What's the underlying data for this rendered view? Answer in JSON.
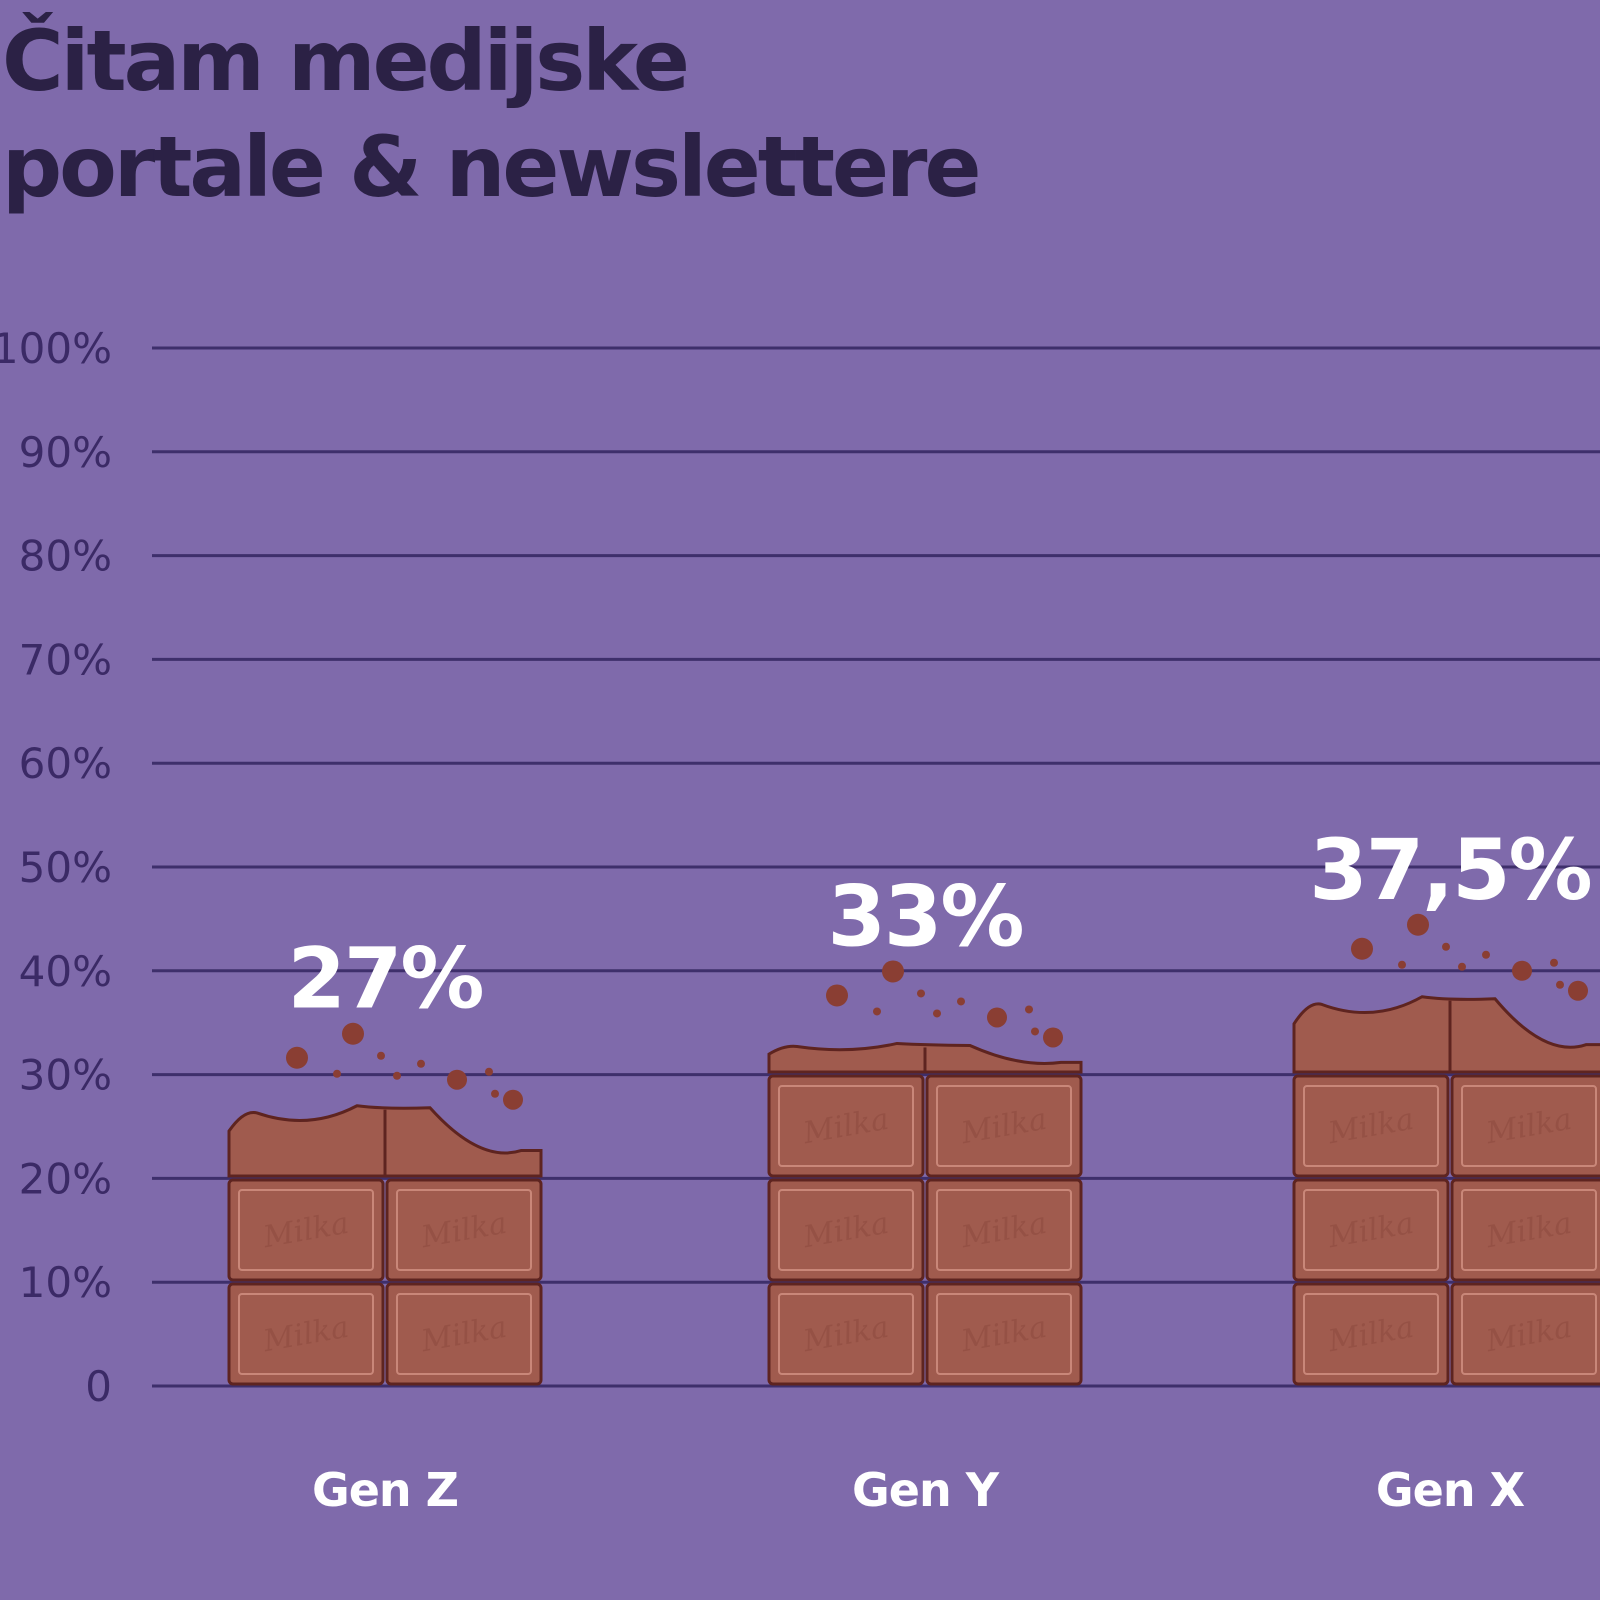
{
  "title_lines": [
    "Čitam medijske",
    "portale & newslettere"
  ],
  "brand_mark": "Milka",
  "colors": {
    "background": "#7f6aab",
    "title": "#2b2145",
    "gridline": "#3e2f6b",
    "tick_label": "#3b2a66",
    "chocolate": "#a05b4e",
    "chocolate_edge": "#5e2420",
    "value_label": "#ffffff",
    "category_label": "#ffffff"
  },
  "chart_data": {
    "type": "bar",
    "categories": [
      "Gen Z",
      "Gen Y",
      "Gen X"
    ],
    "values": [
      27,
      33,
      37.5
    ],
    "value_labels": [
      "27%",
      "33%",
      "37,5%"
    ],
    "ylim": [
      0,
      100
    ],
    "yticks": [
      0,
      10,
      20,
      30,
      40,
      50,
      60,
      70,
      80,
      90,
      100
    ],
    "ytick_labels": [
      "0",
      "10%",
      "20%",
      "30%",
      "40%",
      "50%",
      "60%",
      "70%",
      "80%",
      "90%",
      "100%"
    ],
    "grid": true,
    "bar_style": "chocolate bar"
  }
}
